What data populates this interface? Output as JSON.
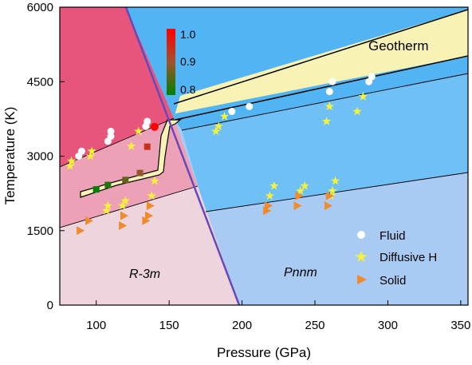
{
  "chart_data": {
    "type": "scatter",
    "title": "",
    "xlabel": "Pressure (GPa)",
    "ylabel": "Temperature (K)",
    "xlim": [
      75,
      355
    ],
    "ylim": [
      0,
      6000
    ],
    "x_ticks": [
      100,
      150,
      200,
      250,
      300,
      350
    ],
    "y_ticks": [
      0,
      1500,
      3000,
      4500,
      6000
    ],
    "x_tick_labels": [
      "100",
      "150",
      "200",
      "250",
      "300",
      "350"
    ],
    "y_tick_labels": [
      "0",
      "1500",
      "3000",
      "4500",
      "6000"
    ],
    "legend_position": "bottom-right",
    "series": [
      {
        "name": "Fluid",
        "marker": "circle",
        "color": "#ffffff",
        "points": [
          [
            88,
            3000
          ],
          [
            90,
            3100
          ],
          [
            108,
            3300
          ],
          [
            110,
            3400
          ],
          [
            110,
            3500
          ],
          [
            134,
            3600
          ],
          [
            135,
            3700
          ],
          [
            193,
            3900
          ],
          [
            205,
            4000
          ],
          [
            260,
            4300
          ],
          [
            262,
            4500
          ],
          [
            287,
            4500
          ],
          [
            289,
            4600
          ]
        ]
      },
      {
        "name": "Diffusive H",
        "marker": "star",
        "color": "#f5f23a",
        "points": [
          [
            82,
            2800
          ],
          [
            83,
            2900
          ],
          [
            96,
            3000
          ],
          [
            97,
            3100
          ],
          [
            107,
            1900
          ],
          [
            108,
            2000
          ],
          [
            118,
            2000
          ],
          [
            120,
            2100
          ],
          [
            124,
            3200
          ],
          [
            129,
            3500
          ],
          [
            138,
            2200
          ],
          [
            140,
            2500
          ],
          [
            182,
            3500
          ],
          [
            184,
            3600
          ],
          [
            188,
            3800
          ],
          [
            219,
            2200
          ],
          [
            222,
            2400
          ],
          [
            240,
            2300
          ],
          [
            243,
            2400
          ],
          [
            258,
            3700
          ],
          [
            260,
            4000
          ],
          [
            261,
            2200
          ],
          [
            262,
            2300
          ],
          [
            264,
            2500
          ],
          [
            279,
            3900
          ],
          [
            283,
            4200
          ]
        ]
      },
      {
        "name": "Solid",
        "marker": "triangle",
        "color": "#f08a2a",
        "points": [
          [
            89,
            1500
          ],
          [
            95,
            1700
          ],
          [
            118,
            1600
          ],
          [
            119,
            1800
          ],
          [
            134,
            1700
          ],
          [
            136,
            1800
          ],
          [
            137,
            2000
          ],
          [
            217,
            1900
          ],
          [
            218,
            2000
          ],
          [
            238,
            2000
          ],
          [
            239,
            2200
          ],
          [
            259,
            2000
          ],
          [
            260,
            2200
          ]
        ]
      }
    ],
    "melting_curve": {
      "color_scale_label": "",
      "points": [
        [
          100,
          2330,
          0.8
        ],
        [
          108,
          2420,
          0.82
        ],
        [
          120,
          2520,
          0.86
        ],
        [
          130,
          2660,
          0.89
        ],
        [
          135,
          3190,
          0.94
        ],
        [
          140,
          3590,
          1.0
        ]
      ]
    },
    "colorbar": {
      "ticks": [
        "1.0",
        "0.9",
        "0.8"
      ],
      "range": [
        0.8,
        1.0
      ],
      "colors": [
        "#ff0000",
        "#a0522d",
        "#008000"
      ]
    },
    "region_labels": {
      "r3m": "R-3m",
      "pnnm": "Pnnm",
      "geotherm": "Geotherm"
    }
  }
}
